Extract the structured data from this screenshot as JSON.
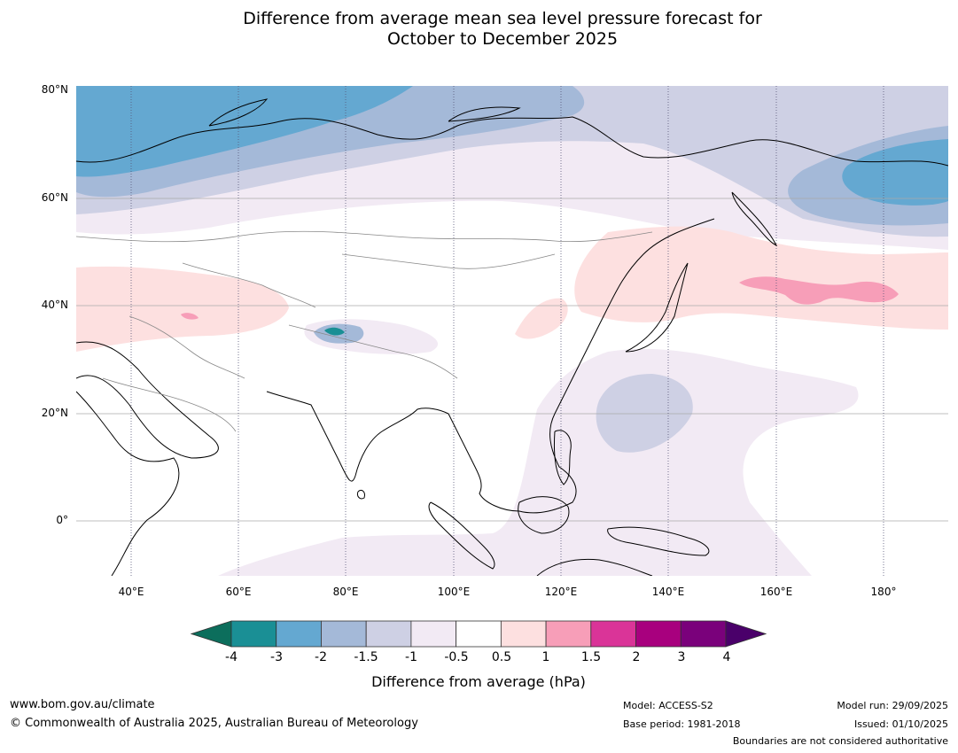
{
  "title_line1": "Difference from average mean sea level pressure forecast for",
  "title_line2": "October to December 2025",
  "map": {
    "lat_labels": [
      "80°N",
      "60°N",
      "40°N",
      "20°N",
      "0°"
    ],
    "lon_labels": [
      "40°E",
      "60°E",
      "80°E",
      "100°E",
      "120°E",
      "140°E",
      "160°E",
      "180°"
    ],
    "extent": {
      "lon_min": 30,
      "lon_max": 192,
      "lat_min": -10,
      "lat_max": 81
    }
  },
  "colorbar": {
    "label": "Difference from average (hPa)",
    "ticks": [
      "-4",
      "-3",
      "-2",
      "-1.5",
      "-1",
      "-0.5",
      "0.5",
      "1",
      "1.5",
      "2",
      "3",
      "4"
    ],
    "colors": [
      "#1a8f95",
      "#64a8d1",
      "#a4b9d8",
      "#ced0e4",
      "#f2eaf4",
      "#ffffff",
      "#fde0e0",
      "#f79eb8",
      "#da3498",
      "#a8007e",
      "#7a017b"
    ],
    "under_color": "#0c6e5c",
    "over_color": "#4a006a"
  },
  "footer": {
    "site": "www.bom.gov.au/climate",
    "copyright": "© Commonwealth of Australia 2025, Australian Bureau of Meteorology",
    "model": "Model: ACCESS-S2",
    "base_period": "Base period: 1981-2018",
    "model_run": "Model run: 29/09/2025",
    "issued": "Issued: 01/10/2025",
    "boundaries": "Boundaries are not considered authoritative"
  }
}
